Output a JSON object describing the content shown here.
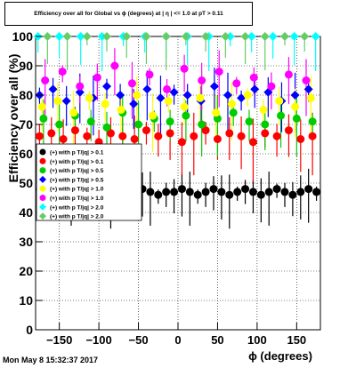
{
  "title": "Efficiency over all for Global vs ϕ (degrees) at | η | <= 1.0 at pT > 0.11",
  "timestamp": "Mon May  8 15:32:37 2017",
  "chart_data": {
    "type": "scatter",
    "xlabel": "ϕ (degrees)",
    "ylabel": "Efficiency over all (%)",
    "xlim": [
      -180,
      180
    ],
    "ylim": [
      0,
      100
    ],
    "x_ticks": [
      -150,
      -100,
      -50,
      0,
      50,
      100,
      150
    ],
    "x_tick_labels": [
      "−150",
      "−100",
      "−50",
      "0",
      "50",
      "100",
      "150"
    ],
    "y_ticks": [
      0,
      10,
      20,
      30,
      40,
      50,
      60,
      70,
      80,
      90,
      100
    ],
    "grid": true,
    "legend_placement": "middle-left",
    "series": [
      {
        "name": "(+) with p T/|q| > 0.1",
        "color": "#000000",
        "marker": "circle",
        "x": [
          -175,
          -165,
          -155,
          -145,
          -135,
          -125,
          -115,
          -105,
          -95,
          -85,
          -75,
          -65,
          -55,
          -45,
          -35,
          -25,
          -15,
          -5,
          5,
          15,
          25,
          35,
          45,
          55,
          65,
          75,
          85,
          95,
          105,
          115,
          125,
          135,
          145,
          155,
          165,
          175
        ],
        "values": [
          48,
          47,
          47,
          48,
          47,
          46,
          47,
          48,
          47,
          46,
          47,
          46,
          47,
          48,
          47,
          46,
          47,
          47,
          48,
          47,
          46,
          47,
          48,
          47,
          46,
          47,
          48,
          47,
          46,
          47,
          48,
          47,
          46,
          47,
          48,
          47
        ]
      },
      {
        "name": "(+) with p T/|q| > 0.1",
        "color": "#ff0000",
        "marker": "circle",
        "x": [
          -175,
          -160,
          -145,
          -130,
          -115,
          -100,
          -85,
          -70,
          -55,
          -40,
          -25,
          -10,
          5,
          20,
          35,
          50,
          65,
          80,
          95,
          110,
          125,
          140,
          155,
          170
        ],
        "values": [
          66,
          67,
          65,
          68,
          66,
          64,
          67,
          66,
          65,
          68,
          66,
          67,
          64,
          66,
          68,
          65,
          67,
          66,
          64,
          67,
          66,
          68,
          65,
          66
        ]
      },
      {
        "name": "(+) with p T/|q| > 0.5",
        "color": "#00cc00",
        "marker": "circle",
        "x": [
          -170,
          -150,
          -130,
          -110,
          -90,
          -70,
          -50,
          -30,
          -10,
          10,
          30,
          50,
          70,
          90,
          110,
          130,
          150,
          170
        ],
        "values": [
          72,
          70,
          73,
          71,
          69,
          74,
          70,
          72,
          71,
          73,
          70,
          72,
          74,
          71,
          70,
          73,
          72,
          71
        ]
      },
      {
        "name": "(+) with p T/|q| > 0.5",
        "color": "#0000ff",
        "marker": "diamond",
        "x": [
          -175,
          -158,
          -141,
          -124,
          -107,
          -90,
          -73,
          -56,
          -39,
          -22,
          -5,
          12,
          29,
          46,
          63,
          80,
          97,
          114,
          131,
          148,
          165
        ],
        "values": [
          80,
          82,
          78,
          81,
          79,
          83,
          80,
          77,
          82,
          79,
          81,
          80,
          78,
          83,
          80,
          79,
          82,
          81,
          78,
          80,
          82
        ]
      },
      {
        "name": "(+) with p T/|q| > 1.0",
        "color": "#ffff00",
        "marker": "circle",
        "x": [
          -172,
          -152,
          -132,
          -112,
          -92,
          -72,
          -52,
          -32,
          -12,
          8,
          28,
          48,
          68,
          88,
          108,
          128,
          148,
          168
        ],
        "values": [
          76,
          78,
          74,
          79,
          77,
          75,
          80,
          73,
          78,
          76,
          79,
          74,
          77,
          80,
          75,
          78,
          76,
          79
        ]
      },
      {
        "name": "(+) with p T/|q| > 1.0",
        "color": "#ff00ff",
        "marker": "circle",
        "x": [
          -168,
          -146,
          -124,
          -102,
          -80,
          -58,
          -36,
          -14,
          8,
          30,
          52,
          74,
          96,
          118,
          140,
          162
        ],
        "values": [
          85,
          88,
          83,
          86,
          90,
          84,
          87,
          82,
          89,
          85,
          88,
          84,
          86,
          83,
          87,
          85
        ]
      },
      {
        "name": "(+) with p T/|q| > 2.0",
        "color": "#00ffff",
        "marker": "diamond",
        "x": [
          -177,
          -150,
          -123,
          -96,
          -69,
          -42,
          -15,
          12,
          39,
          66,
          93,
          120,
          147,
          174
        ],
        "values": [
          100,
          100,
          100,
          100,
          100,
          100,
          100,
          100,
          100,
          100,
          100,
          100,
          100,
          100
        ]
      },
      {
        "name": "(+) with p T/|q| > 2.0",
        "color": "#66cc66",
        "marker": "diamond",
        "x": [
          -165,
          -140,
          -115,
          -90,
          -65,
          -40,
          -15,
          10,
          35,
          60,
          85,
          110,
          135,
          160
        ],
        "values": [
          100,
          100,
          100,
          100,
          100,
          100,
          100,
          100,
          100,
          100,
          100,
          100,
          100,
          100
        ]
      }
    ]
  }
}
